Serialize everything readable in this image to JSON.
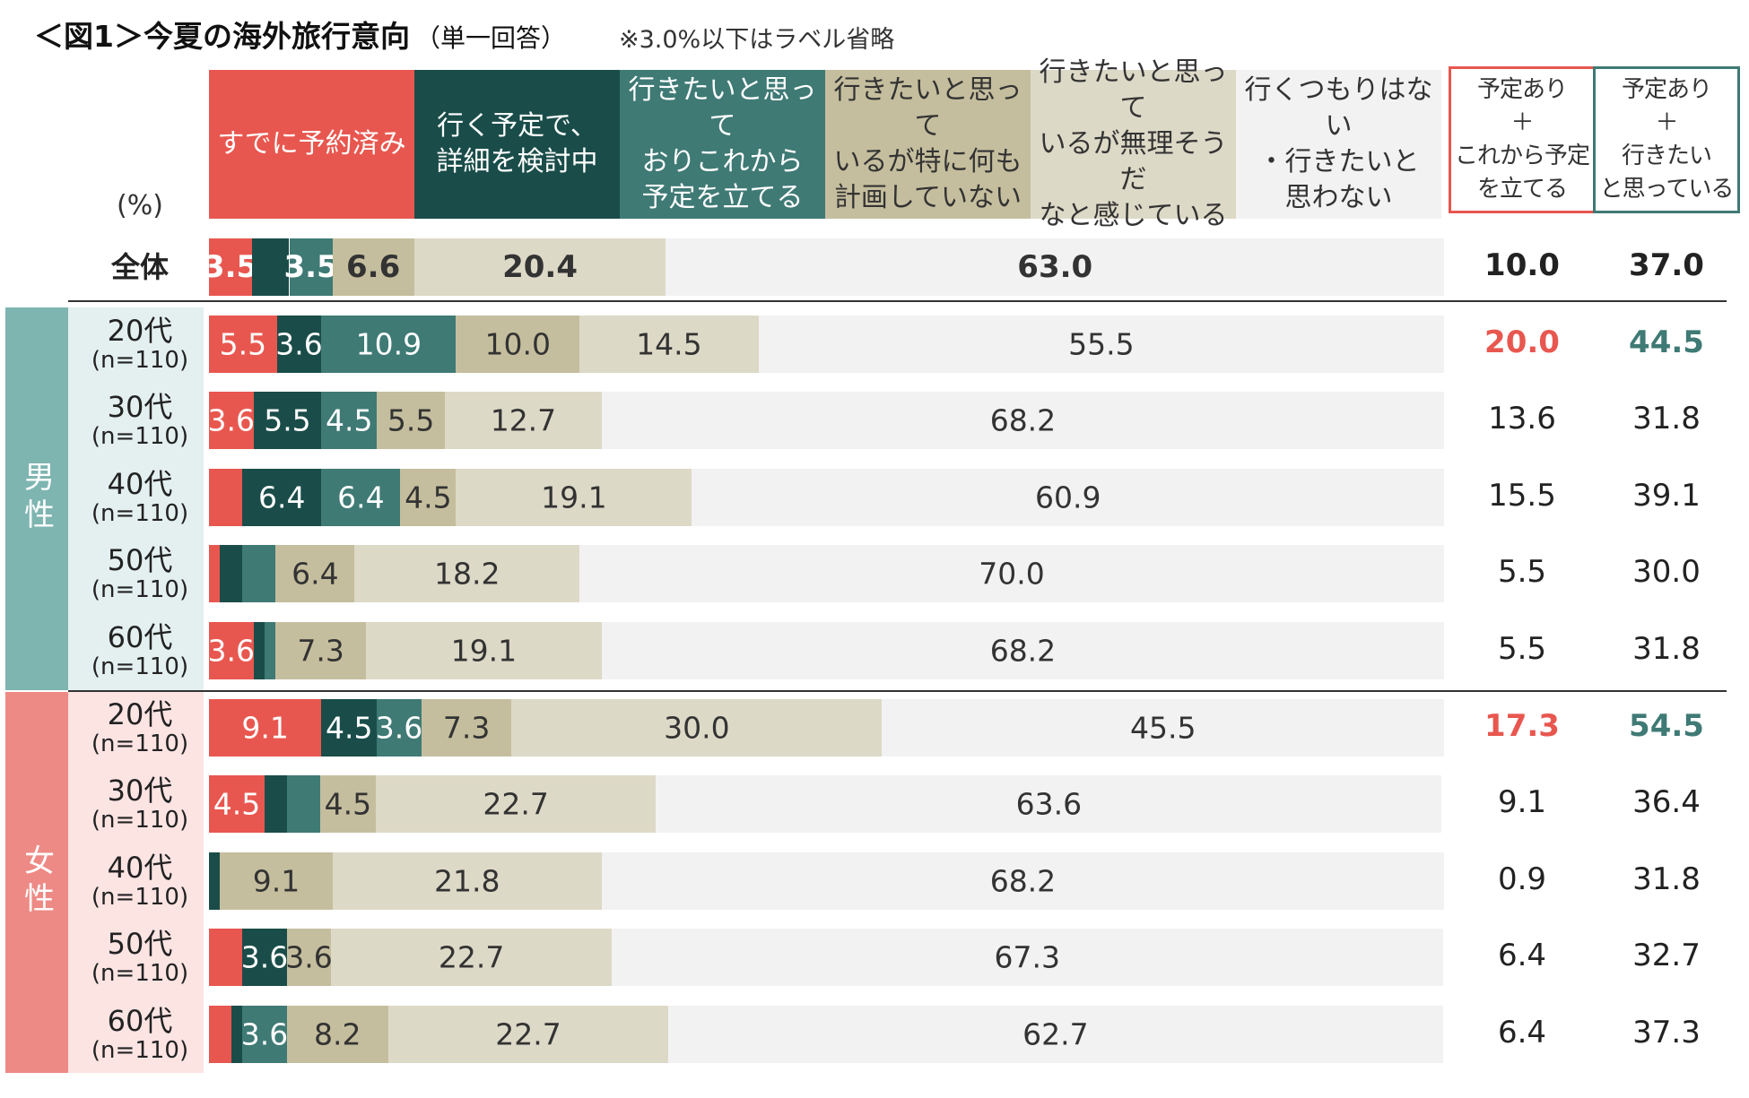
{
  "title": "＜図1＞今夏の海外旅行意向",
  "title_sub": "（単一回答）",
  "note": "※3.0%以下はラベル省略",
  "unit_label": "(%)",
  "colors": {
    "reserved": "#E8574F",
    "detailing": "#1A4D49",
    "planning": "#3F7A75",
    "no_plan": "#C5BE9E",
    "impossible": "#DDD9C7",
    "no_intent": "#F2F2F2",
    "male_panel": "#7EB5B0",
    "male_label_bg": "#E3F0EF",
    "female_panel": "#EE8A85",
    "female_label_bg": "#FCE4E3",
    "highlight_red": "#E8574F",
    "highlight_teal": "#3F7A75"
  },
  "chart_data": {
    "type": "bar",
    "orientation": "horizontal",
    "stacked": true,
    "unit": "%",
    "xlim": [
      0,
      100
    ],
    "label_threshold": 3.0,
    "categories": [
      "全体",
      "男性 20代 (n=110)",
      "男性 30代 (n=110)",
      "男性 40代 (n=110)",
      "男性 50代 (n=110)",
      "男性 60代 (n=110)",
      "女性 20代 (n=110)",
      "女性 30代 (n=110)",
      "女性 40代 (n=110)",
      "女性 50代 (n=110)",
      "女性 60代 (n=110)"
    ],
    "series": [
      {
        "name": "すでに予約済み",
        "key": "reserved",
        "text_color": "#ffffff",
        "values": [
          3.5,
          5.5,
          3.6,
          2.7,
          0.9,
          3.6,
          9.1,
          4.5,
          0.0,
          2.7,
          1.8
        ]
      },
      {
        "name": "行く予定で、\n詳細を検討中",
        "key": "detailing",
        "text_color": "#ffffff",
        "values": [
          3.0,
          3.6,
          5.5,
          6.4,
          1.8,
          0.9,
          4.5,
          1.8,
          0.9,
          3.6,
          0.9
        ]
      },
      {
        "name": "行きたいと思って\nおりこれから\n予定を立てる",
        "key": "planning",
        "text_color": "#ffffff",
        "values": [
          3.5,
          10.9,
          4.5,
          6.4,
          2.7,
          0.9,
          3.6,
          2.7,
          0.0,
          0.0,
          3.6
        ]
      },
      {
        "name": "行きたいと思って\nいるが特に何も\n計画していない",
        "key": "no_plan",
        "text_color": "#333333",
        "values": [
          6.6,
          10.0,
          5.5,
          4.5,
          6.4,
          7.3,
          7.3,
          4.5,
          9.1,
          3.6,
          8.2
        ]
      },
      {
        "name": "行きたいと思って\nいるが無理そうだ\nなと感じている",
        "key": "impossible",
        "text_color": "#333333",
        "values": [
          20.4,
          14.5,
          12.7,
          19.1,
          18.2,
          19.1,
          30.0,
          22.7,
          21.8,
          22.7,
          22.7
        ]
      },
      {
        "name": "行くつもりはない\n・行きたいと\n思わない",
        "key": "no_intent",
        "text_color": "#333333",
        "values": [
          63.0,
          55.5,
          68.2,
          60.9,
          70.0,
          68.2,
          45.5,
          63.6,
          68.2,
          67.3,
          62.7
        ]
      }
    ],
    "summary_columns": [
      {
        "name": "予定あり\n＋\nこれから予定\nを立てる",
        "border_color": "#E8574F",
        "values": [
          "10.0",
          "20.0",
          "13.6",
          "15.5",
          "5.5",
          "5.5",
          "17.3",
          "9.1",
          "0.9",
          "6.4",
          "6.4"
        ],
        "highlight_color": "#E8574F",
        "highlight_rows": [
          1,
          6
        ]
      },
      {
        "name": "予定あり\n＋\n行きたい\nと思っている",
        "border_color": "#3F7A75",
        "values": [
          "37.0",
          "44.5",
          "31.8",
          "39.1",
          "30.0",
          "31.8",
          "54.5",
          "36.4",
          "31.8",
          "32.7",
          "37.3"
        ],
        "highlight_color": "#3F7A75",
        "highlight_rows": [
          1,
          6
        ]
      }
    ]
  },
  "row_labels": [
    {
      "label": "全体",
      "n": ""
    },
    {
      "label": "20代",
      "n": "(n=110)"
    },
    {
      "label": "30代",
      "n": "(n=110)"
    },
    {
      "label": "40代",
      "n": "(n=110)"
    },
    {
      "label": "50代",
      "n": "(n=110)"
    },
    {
      "label": "60代",
      "n": "(n=110)"
    },
    {
      "label": "20代",
      "n": "(n=110)"
    },
    {
      "label": "30代",
      "n": "(n=110)"
    },
    {
      "label": "40代",
      "n": "(n=110)"
    },
    {
      "label": "50代",
      "n": "(n=110)"
    },
    {
      "label": "60代",
      "n": "(n=110)"
    }
  ],
  "groups": {
    "male": "男性",
    "female": "女性"
  }
}
